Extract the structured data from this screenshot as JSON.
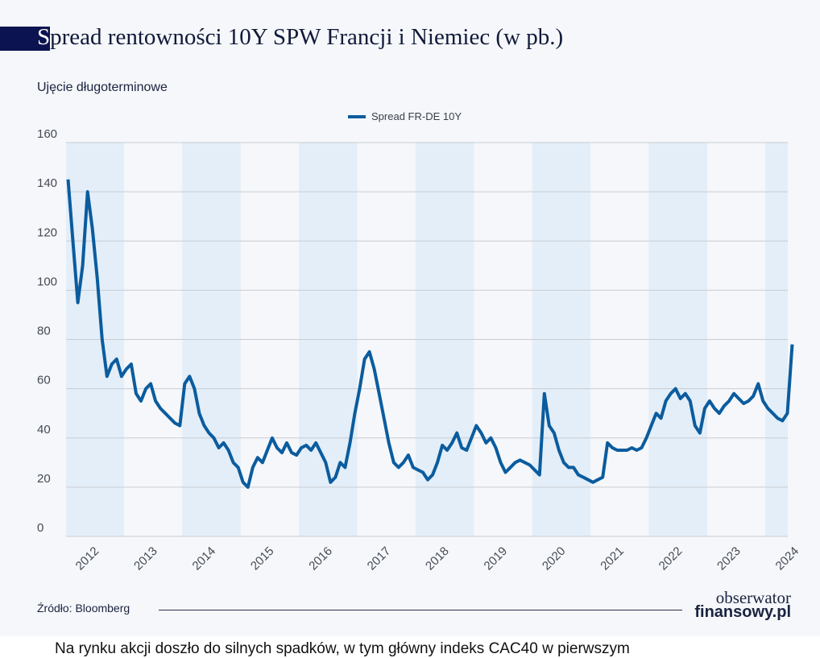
{
  "header": {
    "title_first_letter": "S",
    "title_rest": "pread rentowności 10Y SPW Francji i Niemiec (w pb.)",
    "subtitle": "Ujęcie długoterminowe"
  },
  "footer": {
    "source": "Źródło: Bloomberg",
    "logo_line1": "obserwator",
    "logo_line2": "finansowy.pl"
  },
  "caption": "Na rynku akcji doszło do silnych spadków, w tym główny indeks CAC40 w pierwszym",
  "colors": {
    "line": "#0b5c9e",
    "band": "#e3eef8",
    "background": "#f5f7fa",
    "title_block": "#0b1450"
  },
  "chart_data": {
    "type": "line",
    "title": "Spread rentowności 10Y SPW Francji i Niemiec (w pb.)",
    "subtitle": "Ujęcie długoterminowe",
    "legend": "top-center",
    "grid": true,
    "ylim": [
      0,
      160
    ],
    "yticks": [
      0,
      20,
      40,
      60,
      80,
      100,
      120,
      140,
      160
    ],
    "xticks": [
      "2012",
      "2013",
      "2014",
      "2015",
      "2016",
      "2017",
      "2018",
      "2019",
      "2020",
      "2021",
      "2022",
      "2023",
      "2024"
    ],
    "shaded_years": [
      "2012",
      "2014",
      "2016",
      "2018",
      "2020",
      "2022",
      "2024"
    ],
    "x_start": "2012-01",
    "x_step": "month",
    "series": [
      {
        "name": "Spread FR-DE 10Y",
        "values": [
          145,
          120,
          95,
          110,
          140,
          125,
          105,
          80,
          65,
          70,
          72,
          65,
          68,
          70,
          58,
          55,
          60,
          62,
          55,
          52,
          50,
          48,
          46,
          45,
          62,
          65,
          60,
          50,
          45,
          42,
          40,
          36,
          38,
          35,
          30,
          28,
          22,
          20,
          28,
          32,
          30,
          35,
          40,
          36,
          34,
          38,
          34,
          33,
          36,
          37,
          35,
          38,
          34,
          30,
          22,
          24,
          30,
          28,
          38,
          50,
          60,
          72,
          75,
          68,
          58,
          48,
          38,
          30,
          28,
          30,
          33,
          28,
          27,
          26,
          23,
          25,
          30,
          37,
          35,
          38,
          42,
          36,
          35,
          40,
          45,
          42,
          38,
          40,
          36,
          30,
          26,
          28,
          30,
          31,
          30,
          29,
          27,
          25,
          58,
          45,
          42,
          35,
          30,
          28,
          28,
          25,
          24,
          23,
          22,
          23,
          24,
          38,
          36,
          35,
          35,
          35,
          36,
          35,
          36,
          40,
          45,
          50,
          48,
          55,
          58,
          60,
          56,
          58,
          55,
          45,
          42,
          52,
          55,
          52,
          50,
          53,
          55,
          58,
          56,
          54,
          55,
          57,
          62,
          55,
          52,
          50,
          48,
          47,
          50,
          78
        ]
      }
    ]
  }
}
